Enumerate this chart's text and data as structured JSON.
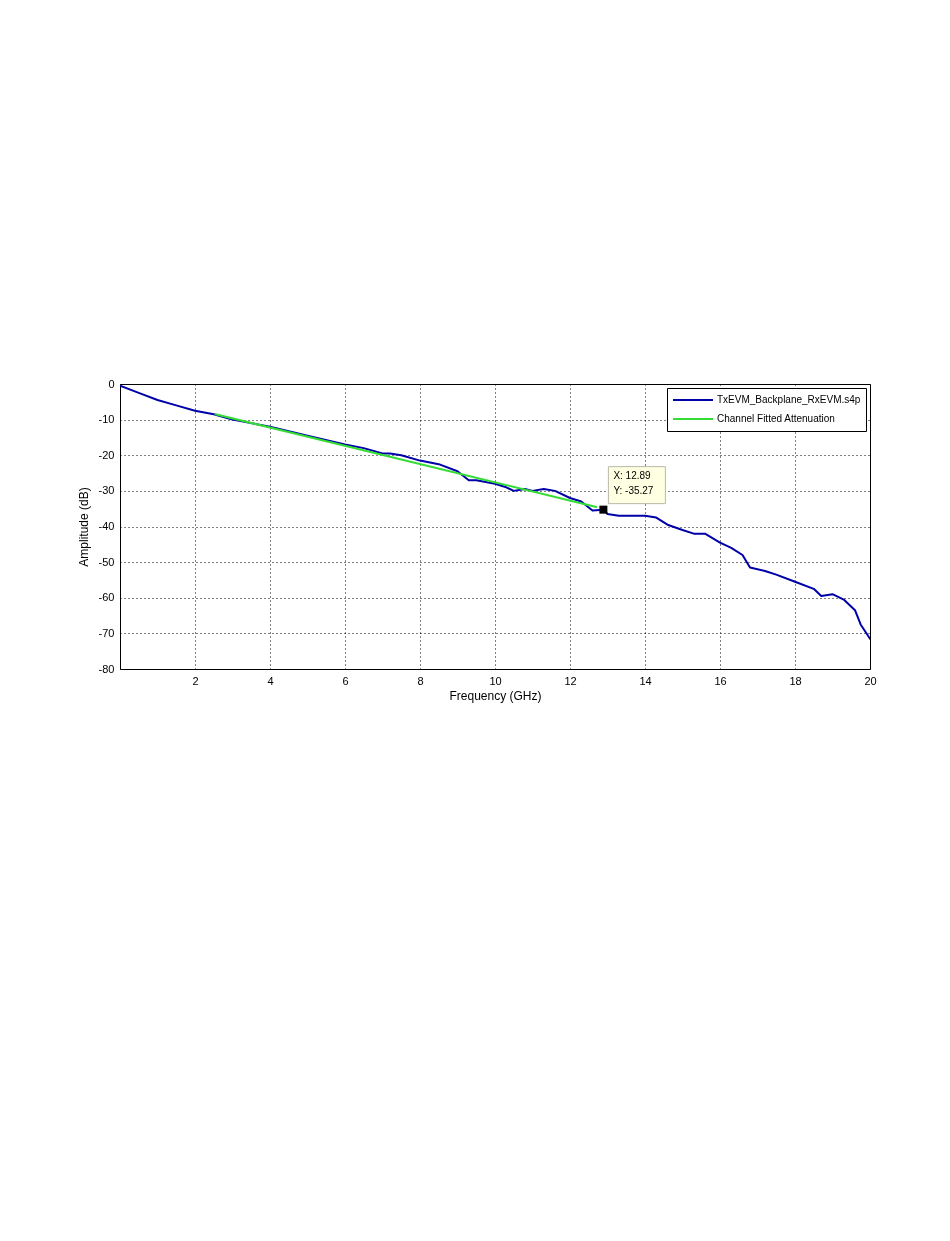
{
  "chart_data": {
    "type": "line",
    "xlabel": "Frequency (GHz)",
    "ylabel": "Amplitude (dB)",
    "xlim": [
      0,
      20
    ],
    "ylim": [
      -80,
      0
    ],
    "xticks": [
      2,
      4,
      6,
      8,
      10,
      12,
      14,
      16,
      18,
      20
    ],
    "yticks": [
      -80,
      -70,
      -60,
      -50,
      -40,
      -30,
      -20,
      -10,
      0
    ],
    "grid": true,
    "legend": "top right",
    "line_style": "solid",
    "marker": "none",
    "series": [
      {
        "name": "TxEVM_Backplane_RxEVM.s4p",
        "color": "#0000a8",
        "x": [
          0,
          0.5,
          1,
          1.5,
          2,
          2.5,
          3,
          4,
          5,
          6,
          6.5,
          7,
          7.2,
          7.5,
          8,
          8.5,
          9,
          9.3,
          9.5,
          10,
          10.3,
          10.5,
          10.8,
          11,
          11.3,
          11.6,
          12,
          12.3,
          12.6,
          12.89,
          13,
          13.3,
          13.5,
          14,
          14.3,
          14.6,
          15,
          15.3,
          15.6,
          16,
          16.3,
          16.6,
          16.8,
          17.2,
          17.5,
          18,
          18.5,
          18.7,
          19,
          19.3,
          19.6,
          19.75,
          20
        ],
        "values": [
          -0.5,
          -2.5,
          -4.5,
          -6,
          -7.5,
          -8.5,
          -10,
          -12,
          -14.5,
          -17,
          -18,
          -19.5,
          -19.5,
          -20,
          -21.5,
          -22.5,
          -24.5,
          -27,
          -27,
          -28,
          -29,
          -30,
          -29.5,
          -30,
          -29.5,
          -30,
          -32,
          -33,
          -35.5,
          -35.27,
          -36.5,
          -37,
          -37,
          -37,
          -37.5,
          -39.5,
          -41,
          -42,
          -42,
          -44.5,
          -46,
          -48,
          -51.5,
          -52.5,
          -53.5,
          -55.5,
          -57.5,
          -59.5,
          -59,
          -60.5,
          -63.5,
          -67.5,
          -71.5
        ]
      },
      {
        "name": "Channel Fitted Attenuation",
        "color": "#33dd33",
        "x": [
          2.55,
          12.7
        ],
        "values": [
          -8.5,
          -34.5
        ]
      }
    ],
    "annotations": [
      {
        "text": "X: 12.89\nY: -35.27",
        "x": 12.89,
        "y": -35.27
      }
    ]
  }
}
